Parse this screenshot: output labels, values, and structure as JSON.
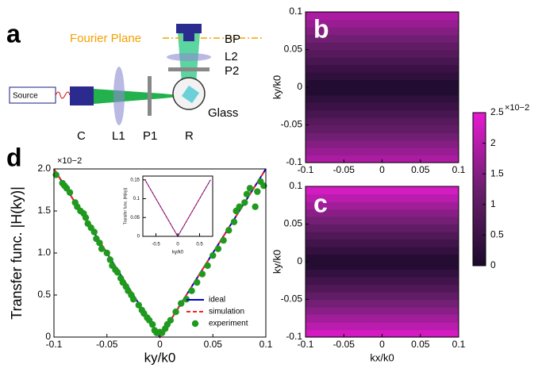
{
  "diagram": {
    "panel_label": "a",
    "fourier_plane": "Fourier Plane",
    "source": "Source",
    "bp": "BP",
    "l2": "L2",
    "p2": "P2",
    "c": "C",
    "l1": "L1",
    "p1": "P1",
    "r": "R",
    "glass": "Glass"
  },
  "chart_data": [
    {
      "type": "line",
      "panel_label": "d",
      "scale_label": "×10−2",
      "ylabel": "Transfer func. |H(ky)|",
      "xlabel": "ky/k0",
      "xlim": [
        -0.1,
        0.1
      ],
      "xticks": [
        -0.1,
        -0.05,
        0,
        0.05,
        0.1
      ],
      "ylim": [
        0,
        2.0
      ],
      "yticks": [
        0,
        0.5,
        {
          "value": 1.0,
          "label": "1.0"
        },
        1.5,
        {
          "value": 2.0,
          "label": "2.0"
        }
      ],
      "legend": "lower right",
      "series": [
        {
          "name": "ideal",
          "color": "#0000cc",
          "mark": "line",
          "x": [
            -0.1,
            0,
            0.1
          ],
          "values": [
            2.0,
            0,
            2.0
          ]
        },
        {
          "name": "simulation",
          "color": "#ff2020",
          "mark": "dashed",
          "x": [
            -0.1,
            0,
            0.1
          ],
          "values": [
            2.0,
            0,
            2.0
          ]
        },
        {
          "name": "experiment",
          "color": "#1f9a1f",
          "mark": "dot",
          "x": [
            -0.098,
            -0.092,
            -0.09,
            -0.088,
            -0.085,
            -0.08,
            -0.078,
            -0.075,
            -0.072,
            -0.07,
            -0.068,
            -0.065,
            -0.062,
            -0.06,
            -0.057,
            -0.055,
            -0.05,
            -0.047,
            -0.045,
            -0.042,
            -0.04,
            -0.037,
            -0.035,
            -0.032,
            -0.03,
            -0.027,
            -0.025,
            -0.02,
            -0.017,
            -0.015,
            -0.012,
            -0.01,
            -0.007,
            -0.005,
            -0.003,
            0,
            0.002,
            0.005,
            0.007,
            0.01,
            0.015,
            0.02,
            0.025,
            0.03,
            0.035,
            0.04,
            0.045,
            0.05,
            0.055,
            0.06,
            0.065,
            0.07,
            0.072,
            0.075,
            0.08,
            0.082,
            0.085,
            0.09,
            0.092,
            0.095,
            0.098
          ],
          "values": [
            1.93,
            1.83,
            1.8,
            1.77,
            1.72,
            1.6,
            1.55,
            1.5,
            1.47,
            1.42,
            1.35,
            1.3,
            1.25,
            1.17,
            1.12,
            1.05,
            1.0,
            0.92,
            0.85,
            0.8,
            0.77,
            0.7,
            0.65,
            0.6,
            0.55,
            0.5,
            0.45,
            0.38,
            0.32,
            0.28,
            0.23,
            0.2,
            0.15,
            0.08,
            0.05,
            0.06,
            0.05,
            0.1,
            0.15,
            0.2,
            0.3,
            0.4,
            0.45,
            0.55,
            0.65,
            0.75,
            0.85,
            0.97,
            1.05,
            1.15,
            1.27,
            1.37,
            1.5,
            1.55,
            1.6,
            1.7,
            1.77,
            1.55,
            1.73,
            1.85,
            1.8
          ]
        }
      ]
    },
    {
      "type": "line",
      "ylabel": "Transfer func. |H(ky)|",
      "xlabel": "ky/k0",
      "xlim": [
        -0.8,
        0.8
      ],
      "xticks": [
        -0.5,
        0,
        0.5
      ],
      "ylim": [
        0,
        0.16
      ],
      "yticks": [
        0,
        0.05,
        0.1,
        0.15
      ],
      "series": [
        {
          "color": "#0000cc",
          "mark": "line",
          "x": [
            -0.75,
            0,
            0.75
          ],
          "values": [
            0.15,
            0,
            0.15
          ]
        },
        {
          "color": "#ff2020",
          "mark": "dashed",
          "x": [
            -0.75,
            0,
            0.75
          ],
          "values": [
            0.15,
            0,
            0.15
          ]
        }
      ]
    },
    {
      "type": "heatmap",
      "panel_label": "b",
      "ylabel": "ky/k0",
      "xlim": [
        -0.1,
        0.1
      ],
      "xticks": [
        -0.1,
        -0.05,
        0,
        0.05,
        0.1
      ],
      "ylim": [
        -0.1,
        0.1
      ],
      "yticks": [
        -0.1,
        -0.05,
        0,
        0.05,
        0.1
      ],
      "y": [
        -0.095,
        -0.085,
        -0.075,
        -0.065,
        -0.055,
        -0.045,
        -0.035,
        -0.025,
        -0.015,
        -0.005,
        0.005,
        0.015,
        0.025,
        0.035,
        0.045,
        0.055,
        0.065,
        0.075,
        0.085,
        0.095
      ],
      "values": [
        1.9,
        1.7,
        1.5,
        1.3,
        1.1,
        0.9,
        0.7,
        0.5,
        0.3,
        0.1,
        0.1,
        0.3,
        0.5,
        0.7,
        0.9,
        1.1,
        1.3,
        1.5,
        1.7,
        1.9
      ]
    },
    {
      "type": "heatmap",
      "panel_label": "c",
      "ylabel": "ky/k0",
      "xlabel": "kx/k0",
      "xlim": [
        -0.1,
        0.1
      ],
      "xticks": [
        -0.1,
        -0.05,
        0,
        0.05,
        0.1
      ],
      "ylim": [
        -0.1,
        0.1
      ],
      "yticks": [
        -0.1,
        -0.05,
        0,
        0.05,
        0.1
      ],
      "y": [
        -0.095,
        -0.085,
        -0.075,
        -0.065,
        -0.055,
        -0.045,
        -0.035,
        -0.025,
        -0.015,
        -0.005,
        0.005,
        0.015,
        0.025,
        0.035,
        0.045,
        0.055,
        0.065,
        0.075,
        0.085,
        0.095
      ],
      "values": [
        2.28,
        2.04,
        1.8,
        1.56,
        1.32,
        1.08,
        0.84,
        0.6,
        0.36,
        0.12,
        0.12,
        0.36,
        0.6,
        0.84,
        1.08,
        1.32,
        1.56,
        1.8,
        2.04,
        2.28
      ]
    }
  ],
  "colorbar": {
    "ylim": [
      0,
      2.5
    ],
    "yticks": [
      0,
      0.5,
      1,
      1.5,
      2,
      2.5
    ],
    "scale_label": "×10−2",
    "colors": [
      "#1c0a2c",
      "#6b1f6e",
      "#e81ad2"
    ]
  }
}
